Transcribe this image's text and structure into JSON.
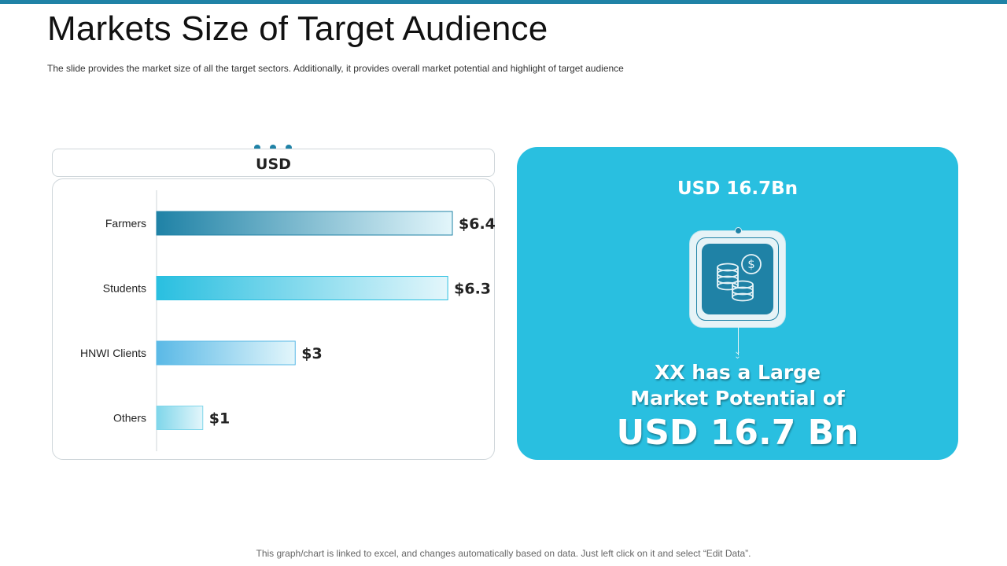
{
  "slide": {
    "title": "Markets Size of Target Audience",
    "subtitle": "The slide provides  the market size of all the target sectors. Additionally, it provides  overall  market potential and highlight of target audience",
    "footer": "This graph/chart is linked to excel, and changes automatically based on data. Just left click on it and select “Edit Data”."
  },
  "chart_header": {
    "label": "USD"
  },
  "chart_data": {
    "type": "bar",
    "orientation": "horizontal",
    "categories": [
      "Farmers",
      "Students",
      "HNWI Clients",
      "Others"
    ],
    "values": [
      6.4,
      6.3,
      3,
      1
    ],
    "data_labels": [
      "$6.4",
      "$6.3",
      "$3",
      "$1"
    ],
    "unit": "USD",
    "xlim": [
      0,
      6.4
    ],
    "grid": false,
    "colors": [
      "#1f82a6",
      "#29bfe0",
      "#5ab9e6",
      "#7fd6ea"
    ]
  },
  "highlight_card": {
    "top_label": "USD 16.7Bn",
    "line1": "XX has a Large",
    "line2": "Market Potential of",
    "big_value": "USD 16.7 Bn",
    "icon": "coins-dollar-icon",
    "background": "#29bfe0"
  },
  "colors": {
    "accent": "#1f82a6",
    "card": "#29bfe0"
  }
}
